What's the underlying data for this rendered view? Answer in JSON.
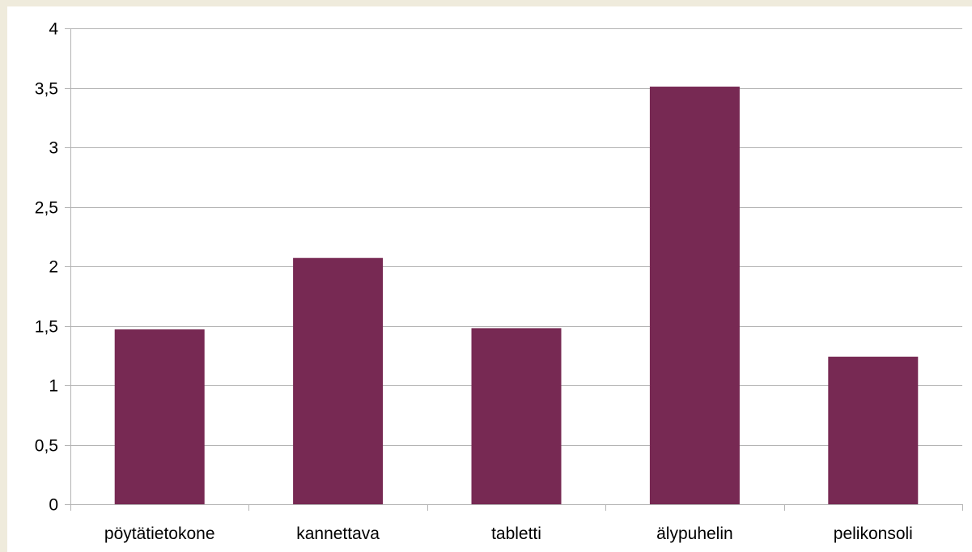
{
  "chart_data": {
    "type": "bar",
    "categories": [
      "pöytätietokone",
      "kannettava",
      "tabletti",
      "älypuhelin",
      "pelikonsoli"
    ],
    "values": [
      1.47,
      2.07,
      1.48,
      3.51,
      1.24
    ],
    "ylim": [
      0,
      4
    ],
    "y_ticks": [
      "0",
      "0,5",
      "1",
      "1,5",
      "2",
      "2,5",
      "3",
      "3,5",
      "4"
    ],
    "y_tick_values": [
      0,
      0.5,
      1,
      1.5,
      2,
      2.5,
      3,
      3.5,
      4
    ],
    "grid": true,
    "legend": "none",
    "bar_color": "#772953",
    "grid_color": "#b3b3b3",
    "background_color": "#efebdc"
  }
}
